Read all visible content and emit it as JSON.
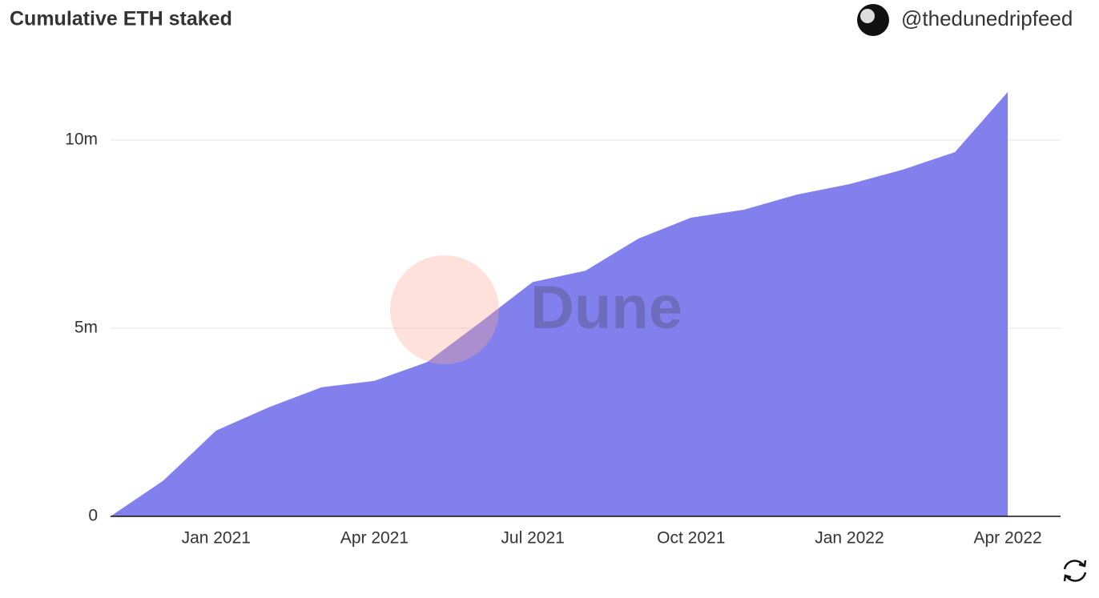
{
  "chart_data": {
    "type": "area",
    "title": "Cumulative ETH staked",
    "author": "@thedunedripfeed",
    "watermark": "Dune",
    "x": [
      "2020-11",
      "2020-12",
      "2021-01",
      "2021-02",
      "2021-03",
      "2021-04",
      "2021-05",
      "2021-06",
      "2021-07",
      "2021-08",
      "2021-09",
      "2021-10",
      "2021-11",
      "2021-12",
      "2022-01",
      "2022-02",
      "2022-03",
      "2022-04"
    ],
    "values": [
      0,
      950000,
      2280000,
      2900000,
      3430000,
      3600000,
      4100000,
      5150000,
      6230000,
      6530000,
      7380000,
      7940000,
      8150000,
      8550000,
      8830000,
      9210000,
      9680000,
      11280000
    ],
    "color": "#8280ec",
    "xlim": [
      "2020-11",
      "2022-05"
    ],
    "xticks": [
      {
        "value": "2021-01",
        "label": "Jan 2021"
      },
      {
        "value": "2021-04",
        "label": "Apr 2021"
      },
      {
        "value": "2021-07",
        "label": "Jul 2021"
      },
      {
        "value": "2021-10",
        "label": "Oct 2021"
      },
      {
        "value": "2022-01",
        "label": "Jan 2022"
      },
      {
        "value": "2022-04",
        "label": "Apr 2022"
      }
    ],
    "ylim": [
      0,
      12500000
    ],
    "yticks": [
      0,
      {
        "value": 5000000,
        "label": "5m"
      },
      {
        "value": 10000000,
        "label": "10m"
      }
    ],
    "grid": true
  }
}
